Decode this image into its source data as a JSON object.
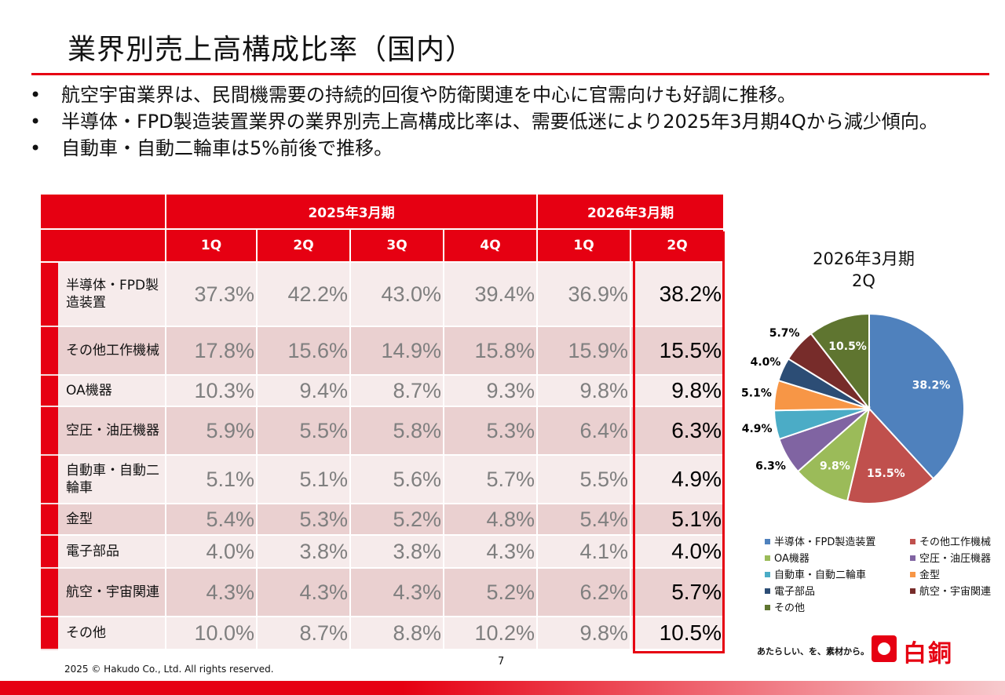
{
  "title": "業界別売上高構成比率（国内）",
  "bullets": [
    "航空宇宙業界は、民間機需要の持続的回復や防衛関連を中心に官需向けも好調に推移。",
    "半導体・FPD製造装置業界の業界別売上高構成比率は、需要低迷により2025年3月期4Qから減少傾向。",
    "自動車・自動二輪車は5%前後で推移。"
  ],
  "table": {
    "periods": [
      "2025年3月期",
      "2026年3月期"
    ],
    "quarters": [
      "1Q",
      "2Q",
      "3Q",
      "4Q",
      "1Q",
      "2Q"
    ],
    "rows": [
      {
        "label": "半導体・FPD製造装置",
        "values": [
          "37.3%",
          "42.2%",
          "43.0%",
          "39.4%",
          "36.9%",
          "38.2%"
        ]
      },
      {
        "label": "その他工作機械",
        "values": [
          "17.8%",
          "15.6%",
          "14.9%",
          "15.8%",
          "15.9%",
          "15.5%"
        ]
      },
      {
        "label": "OA機器",
        "values": [
          "10.3%",
          "9.4%",
          "8.7%",
          "9.3%",
          "9.8%",
          "9.8%"
        ]
      },
      {
        "label": "空圧・油圧機器",
        "values": [
          "5.9%",
          "5.5%",
          "5.8%",
          "5.3%",
          "6.4%",
          "6.3%"
        ]
      },
      {
        "label": "自動車・自動二輪車",
        "values": [
          "5.1%",
          "5.1%",
          "5.6%",
          "5.7%",
          "5.5%",
          "4.9%"
        ]
      },
      {
        "label": "金型",
        "values": [
          "5.4%",
          "5.3%",
          "5.2%",
          "4.8%",
          "5.4%",
          "5.1%"
        ]
      },
      {
        "label": "電子部品",
        "values": [
          "4.0%",
          "3.8%",
          "3.8%",
          "4.3%",
          "4.1%",
          "4.0%"
        ]
      },
      {
        "label": "航空・宇宙関連",
        "values": [
          "4.3%",
          "4.3%",
          "4.3%",
          "5.2%",
          "6.2%",
          "5.7%"
        ]
      },
      {
        "label": "その他",
        "values": [
          "10.0%",
          "8.7%",
          "8.8%",
          "10.2%",
          "9.8%",
          "10.5%"
        ]
      }
    ]
  },
  "chart_data": {
    "type": "pie",
    "title": "2026年3月期 2Q",
    "title_lines": [
      "2026年3月期",
      "2Q"
    ],
    "categories": [
      "半導体・FPD製造装置",
      "その他工作機械",
      "OA機器",
      "空圧・油圧機器",
      "自動車・自動二輪車",
      "金型",
      "電子部品",
      "航空・宇宙関連",
      "その他"
    ],
    "values": [
      38.2,
      15.5,
      9.8,
      6.3,
      4.9,
      5.1,
      4.0,
      5.7,
      10.5
    ],
    "labels": [
      "38.2%",
      "15.5%",
      "9.8%",
      "6.3%",
      "4.9%",
      "5.1%",
      "4.0%",
      "5.7%",
      "10.5%"
    ],
    "colors": [
      "#4f81bd",
      "#c0504d",
      "#9bbb59",
      "#8064a2",
      "#4bacc6",
      "#f79646",
      "#2c4d75",
      "#772c2a",
      "#5f7530"
    ],
    "legend": "bottom"
  },
  "footer": {
    "copyright": "2025 © Hakudo Co., Ltd. All rights reserved.",
    "page": "7",
    "tagline": "あたらしい、を、素材から。",
    "logo": "白銅"
  }
}
